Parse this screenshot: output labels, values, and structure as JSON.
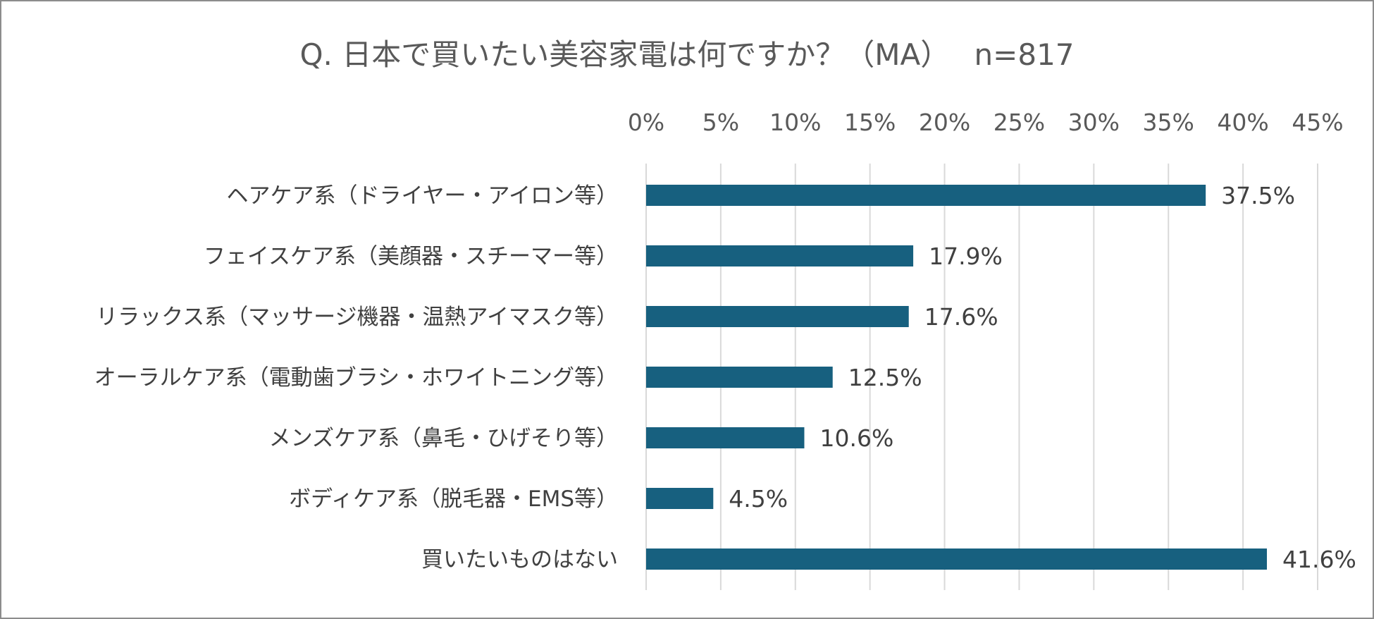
{
  "chart_data": {
    "type": "bar",
    "orientation": "horizontal",
    "title": "Q. 日本で買いたい美容家電は何ですか？（MA）　 n=817",
    "categories": [
      "ヘアケア系（ドライヤー・アイロン等）",
      "フェイスケア系（美顔器・スチーマー等）",
      "リラックス系（マッサージ機器・温熱アイマスク等）",
      "オーラルケア系（電動歯ブラシ・ホワイトニング等）",
      "メンズケア系（鼻毛・ひげそり等）",
      "ボディケア系（脱毛器・EMS等）",
      "買いたいものはない"
    ],
    "values": [
      37.5,
      17.9,
      17.6,
      12.5,
      10.6,
      4.5,
      41.6
    ],
    "data_labels": [
      "37.5%",
      "17.9%",
      "17.6%",
      "12.5%",
      "10.6%",
      "4.5%",
      "41.6%"
    ],
    "xlim": [
      0,
      45
    ],
    "xticks": [
      "0%",
      "5%",
      "10%",
      "15%",
      "20%",
      "25%",
      "30%",
      "35%",
      "40%",
      "45%"
    ],
    "xaxis_position": "top",
    "grid": true,
    "bar_color": "#17607f",
    "xlabel": "",
    "ylabel": ""
  }
}
